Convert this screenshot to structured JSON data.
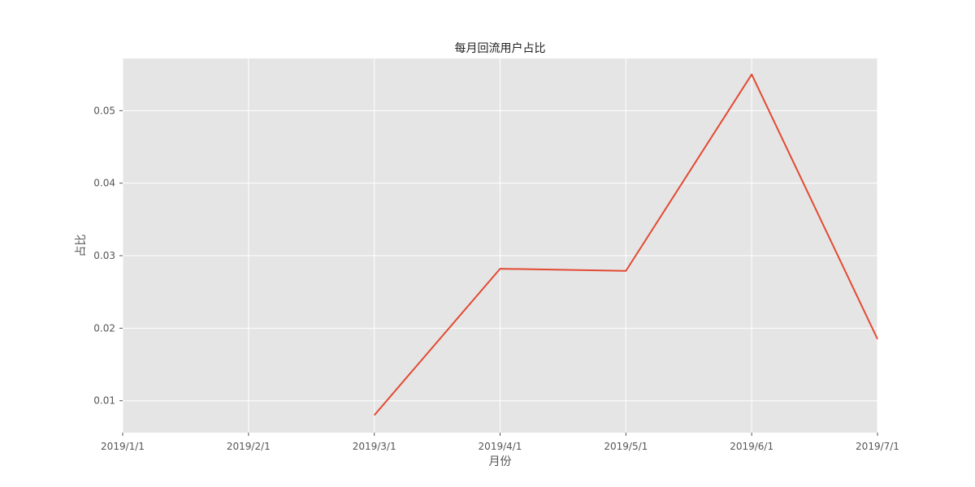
{
  "chart_data": {
    "type": "line",
    "title": "每月回流用户占比",
    "xlabel": "月份",
    "ylabel": "占比",
    "x_tick_labels": [
      "2019/1/1",
      "2019/2/1",
      "2019/3/1",
      "2019/4/1",
      "2019/5/1",
      "2019/6/1",
      "2019/7/1"
    ],
    "y_tick_labels": [
      "0.01",
      "0.02",
      "0.03",
      "0.04",
      "0.05"
    ],
    "y_ticks": [
      0.01,
      0.02,
      0.03,
      0.04,
      0.05
    ],
    "ylim": [
      0.0056,
      0.0572
    ],
    "grid": true,
    "series": [
      {
        "x": [
          "2019/3/1",
          "2019/4/1",
          "2019/5/1",
          "2019/6/1",
          "2019/7/1"
        ],
        "values": [
          0.008,
          0.0282,
          0.0279,
          0.055,
          0.0185
        ]
      }
    ],
    "colors": {
      "background": "#e5e5e5",
      "grid": "#ffffff",
      "line": "#e24a33"
    }
  }
}
